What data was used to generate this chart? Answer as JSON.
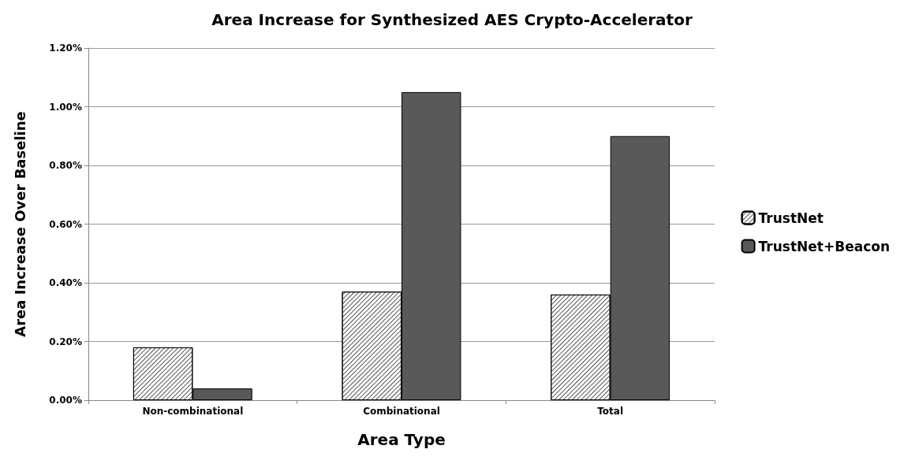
{
  "chart_data": {
    "type": "bar",
    "title": "Area Increase for Synthesized AES Crypto-Accelerator",
    "xlabel": "Area Type",
    "ylabel": "Area Increase Over Baseline",
    "categories": [
      "Non-combinational",
      "Combinational",
      "Total"
    ],
    "series": [
      {
        "name": "TrustNet",
        "color": "#ffffff",
        "values": [
          0.18,
          0.37,
          0.36
        ]
      },
      {
        "name": "TrustNet+Beacon",
        "color": "#595959",
        "values": [
          0.04,
          1.05,
          0.9
        ]
      }
    ],
    "ylim": [
      0,
      1.2
    ],
    "yticks": [
      {
        "value": 0,
        "label": "0.00%"
      },
      {
        "value": 0.2,
        "label": "0.20%"
      },
      {
        "value": 0.4,
        "label": "0.40%"
      },
      {
        "value": 0.6,
        "label": "0.60%"
      },
      {
        "value": 0.8,
        "label": "0.80%"
      },
      {
        "value": 1.0,
        "label": "1.00%"
      },
      {
        "value": 1.2,
        "label": "1.20%"
      }
    ],
    "grid": "y",
    "legend": "right"
  }
}
